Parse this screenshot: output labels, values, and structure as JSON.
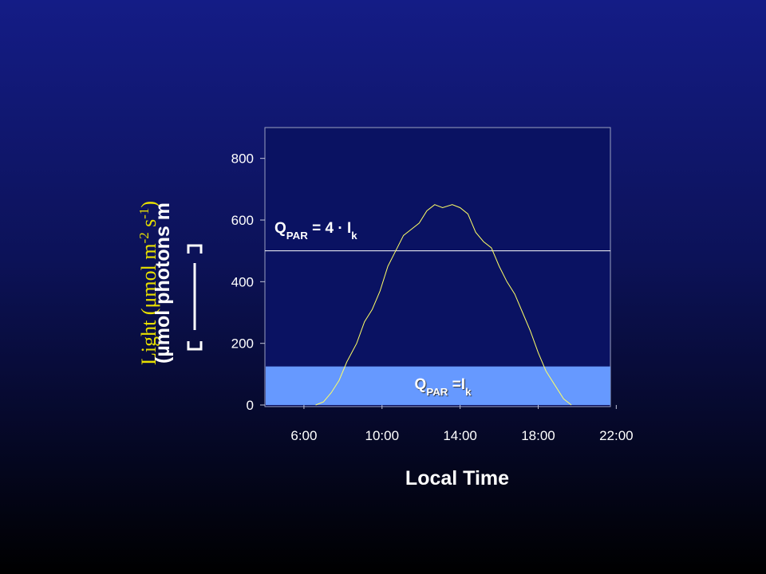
{
  "chart_data": {
    "type": "line",
    "x_label": "Local Time",
    "y_label_parts": [
      "Light (μmol m",
      "-2",
      " s",
      "-1",
      ")"
    ],
    "y_label_overlay": "(µmol photons m",
    "xlim": [
      4,
      21.7
    ],
    "xticks": [
      {
        "value": 6,
        "label": "6:00"
      },
      {
        "value": 10,
        "label": "10:00"
      },
      {
        "value": 14,
        "label": "14:00"
      },
      {
        "value": 18,
        "label": "18:00"
      },
      {
        "value": 22,
        "label": "22:00"
      }
    ],
    "ylim": [
      0,
      900
    ],
    "yticks": [
      0,
      200,
      400,
      600,
      800
    ],
    "grid": false,
    "series": [
      {
        "color": "#ffff66",
        "x": [
          6.6,
          7.0,
          7.4,
          7.8,
          8.2,
          8.7,
          9.1,
          9.5,
          9.9,
          10.3,
          10.7,
          11.1,
          11.5,
          11.9,
          12.3,
          12.7,
          13.1,
          13.6,
          14.0,
          14.4,
          14.8,
          15.2,
          15.6,
          16.0,
          16.4,
          16.8,
          17.2,
          17.6,
          18.0,
          18.4,
          18.9,
          19.3,
          19.7
        ],
        "values": [
          0,
          10,
          40,
          80,
          140,
          200,
          270,
          310,
          370,
          450,
          500,
          550,
          570,
          590,
          630,
          650,
          640,
          650,
          640,
          620,
          560,
          530,
          510,
          450,
          400,
          360,
          300,
          240,
          170,
          110,
          60,
          20,
          0
        ]
      }
    ],
    "band": {
      "from": 0,
      "to": 125,
      "color": "#6699ff",
      "label_parts": [
        "Q",
        "PAR",
        " =I",
        "k"
      ]
    },
    "reference_line": {
      "value": 500,
      "color": "#ffffff",
      "label_parts": [
        "Q",
        "PAR",
        " = 4 · I",
        "k"
      ]
    }
  }
}
